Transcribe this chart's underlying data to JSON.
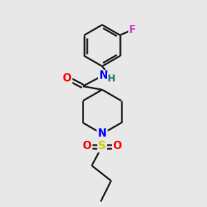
{
  "background_color": "#e8e8e8",
  "line_color": "#1a1a1a",
  "bond_width": 1.8,
  "atom_colors": {
    "O": "#ff0000",
    "N": "#0000ff",
    "S": "#cccc00",
    "F": "#cc44cc",
    "C": "#1a1a1a",
    "H": "#1a8080"
  },
  "figsize": [
    3.0,
    3.0
  ],
  "dpi": 100
}
